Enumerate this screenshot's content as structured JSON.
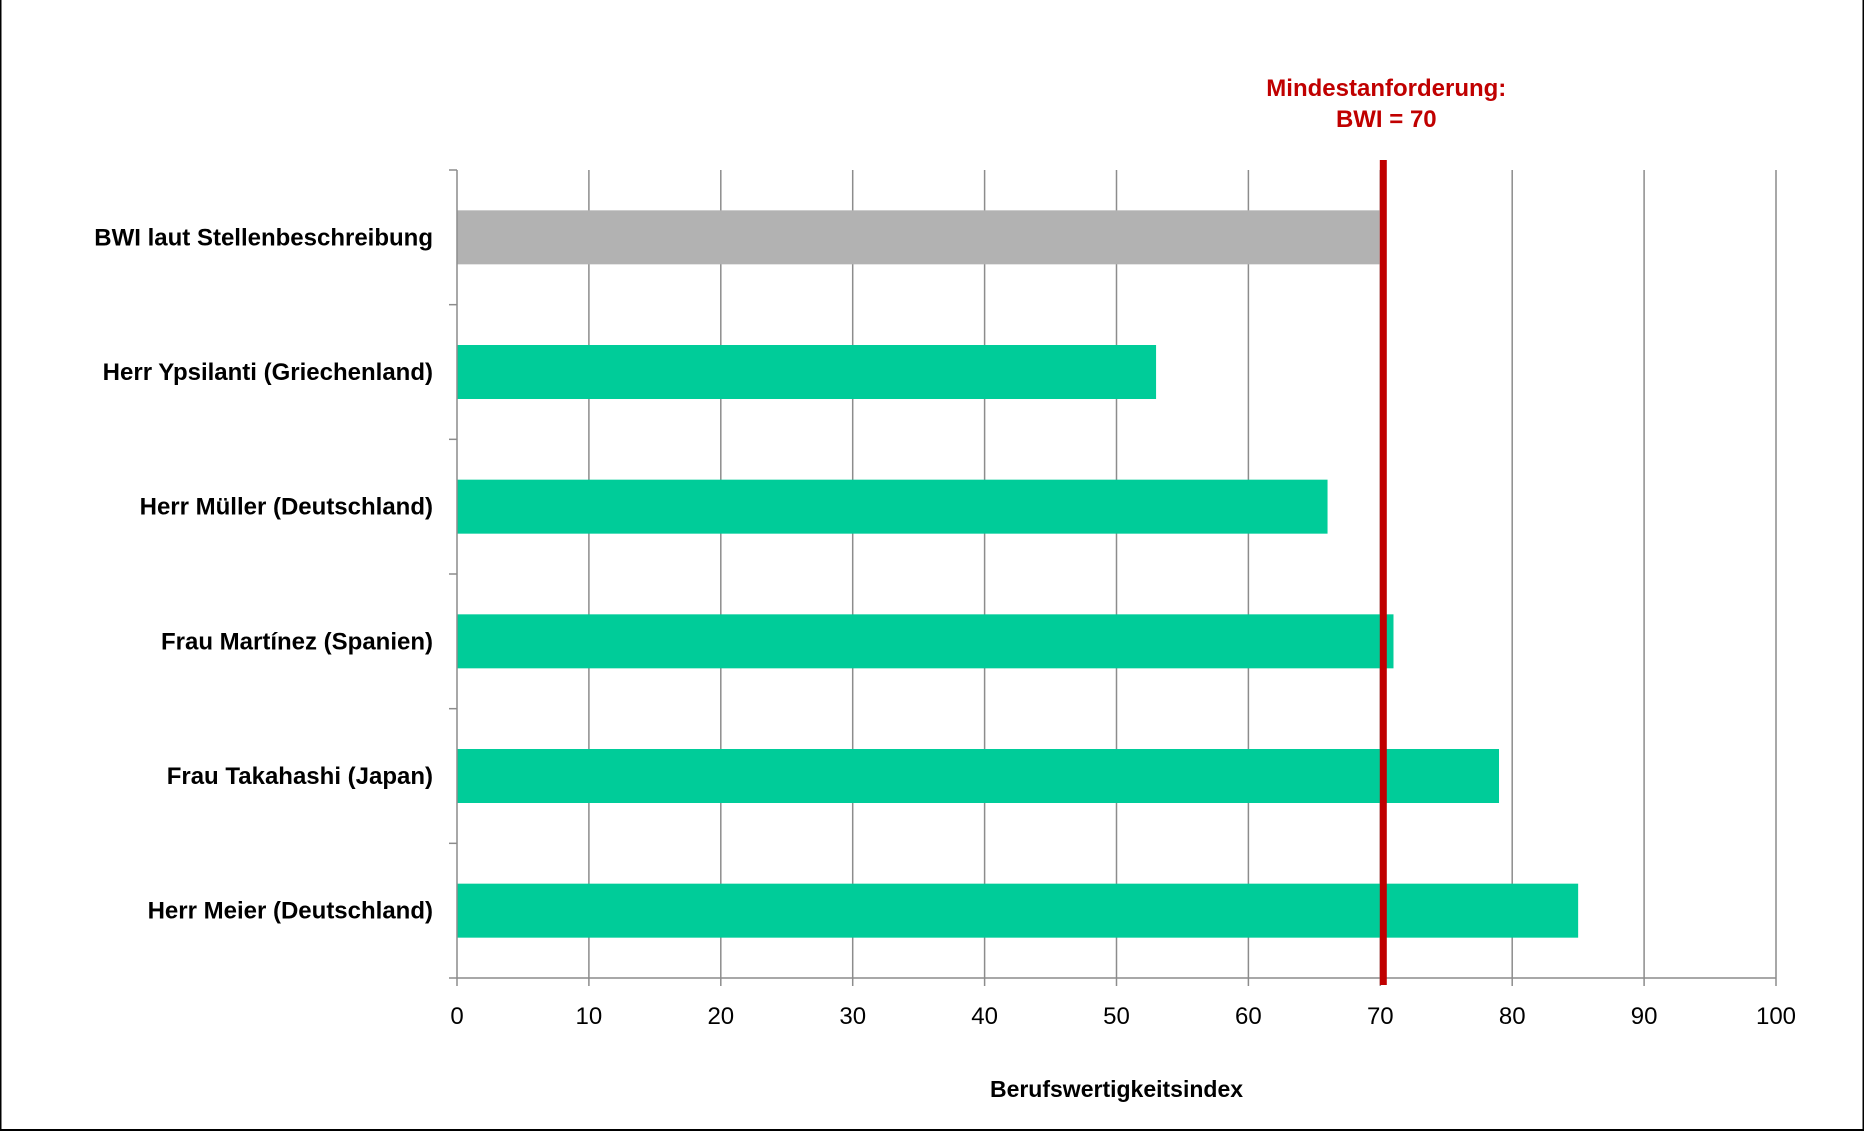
{
  "chart_data": {
    "type": "bar",
    "orientation": "horizontal",
    "categories": [
      "BWI laut Stellenbeschreibung",
      "Herr Ypsilanti (Griechenland)",
      "Herr Müller (Deutschland)",
      "Frau Martínez (Spanien)",
      "Frau Takahashi (Japan)",
      "Herr Meier (Deutschland)"
    ],
    "values": [
      70,
      53,
      66,
      71,
      79,
      85
    ],
    "bar_colors": [
      "#b2b2b2",
      "#00cc99",
      "#00cc99",
      "#00cc99",
      "#00cc99",
      "#00cc99"
    ],
    "xlabel": "Berufswertigkeitsindex",
    "ylabel": "",
    "xlim": [
      0,
      100
    ],
    "xticks": [
      0,
      10,
      20,
      30,
      40,
      50,
      60,
      70,
      80,
      90,
      100
    ],
    "grid": "vertical",
    "reference_line": {
      "value": 70,
      "color": "#c00000",
      "label_line1": "Mindestanforderung:",
      "label_line2": "BWI = 70"
    }
  }
}
